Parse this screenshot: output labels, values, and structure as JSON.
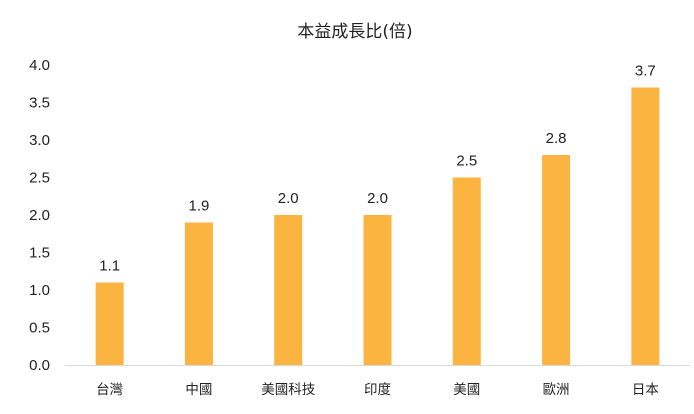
{
  "chart_data": {
    "type": "bar",
    "title": "本益成長比(倍)",
    "xlabel": "",
    "ylabel": "",
    "categories": [
      "台灣",
      "中國",
      "美國科技",
      "印度",
      "美國",
      "歐洲",
      "日本"
    ],
    "values": [
      1.1,
      1.9,
      2.0,
      2.0,
      2.5,
      2.8,
      3.7
    ],
    "value_labels": [
      "1.1",
      "1.9",
      "2.0",
      "2.0",
      "2.5",
      "2.8",
      "3.7"
    ],
    "ylim": [
      0,
      4.0
    ],
    "yticks": [
      "0.0",
      "0.5",
      "1.0",
      "1.5",
      "2.0",
      "2.5",
      "3.0",
      "3.5",
      "4.0"
    ],
    "grid": false,
    "legend": "none",
    "bar_color": "#FBB43F",
    "axis_color": "#D9D9D9"
  }
}
